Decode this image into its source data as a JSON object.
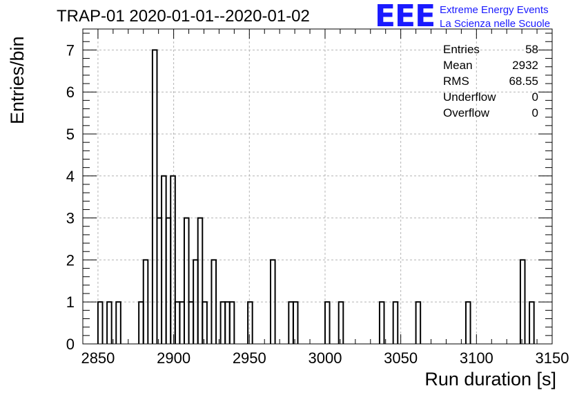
{
  "title": "TRAP-01 2020-01-01--2020-01-02",
  "logo": {
    "mark": "EEE",
    "line1": "Extreme Energy Events",
    "line2": "La Scienza nelle Scuole",
    "color": "#1a1aff"
  },
  "stats": [
    {
      "label": "Entries",
      "value": "58"
    },
    {
      "label": "Mean",
      "value": "2932"
    },
    {
      "label": "RMS",
      "value": "68.55"
    },
    {
      "label": "Underflow",
      "value": "0"
    },
    {
      "label": "Overflow",
      "value": "0"
    }
  ],
  "chart_data": {
    "type": "bar",
    "style": "step-histogram",
    "xlabel": "Run duration [s]",
    "ylabel": "Entries/bin",
    "xlim": [
      2840,
      3150
    ],
    "ylim": [
      0,
      7.5
    ],
    "bin_width": 3,
    "grid": true,
    "xticks": [
      2850,
      2900,
      2950,
      3000,
      3050,
      3100,
      3150
    ],
    "yticks": [
      0,
      1,
      2,
      3,
      4,
      5,
      6,
      7
    ],
    "bins": [
      {
        "x": 2850,
        "count": 1
      },
      {
        "x": 2856,
        "count": 1
      },
      {
        "x": 2862,
        "count": 1
      },
      {
        "x": 2877,
        "count": 1
      },
      {
        "x": 2880,
        "count": 2
      },
      {
        "x": 2886,
        "count": 7
      },
      {
        "x": 2889,
        "count": 3
      },
      {
        "x": 2892,
        "count": 4
      },
      {
        "x": 2895,
        "count": 3
      },
      {
        "x": 2898,
        "count": 4
      },
      {
        "x": 2901,
        "count": 1
      },
      {
        "x": 2904,
        "count": 1
      },
      {
        "x": 2907,
        "count": 3
      },
      {
        "x": 2910,
        "count": 1
      },
      {
        "x": 2913,
        "count": 2
      },
      {
        "x": 2916,
        "count": 3
      },
      {
        "x": 2919,
        "count": 1
      },
      {
        "x": 2925,
        "count": 2
      },
      {
        "x": 2931,
        "count": 1
      },
      {
        "x": 2934,
        "count": 1
      },
      {
        "x": 2937,
        "count": 1
      },
      {
        "x": 2949,
        "count": 1
      },
      {
        "x": 2964,
        "count": 2
      },
      {
        "x": 2976,
        "count": 1
      },
      {
        "x": 2979,
        "count": 1
      },
      {
        "x": 3000,
        "count": 1
      },
      {
        "x": 3009,
        "count": 1
      },
      {
        "x": 3036,
        "count": 1
      },
      {
        "x": 3045,
        "count": 1
      },
      {
        "x": 3060,
        "count": 1
      },
      {
        "x": 3093,
        "count": 1
      },
      {
        "x": 3129,
        "count": 2
      },
      {
        "x": 3135,
        "count": 1
      }
    ]
  }
}
